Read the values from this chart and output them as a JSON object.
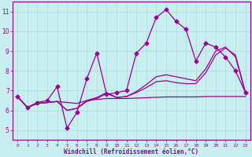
{
  "xlabel": "Windchill (Refroidissement éolien,°C)",
  "bg_color": "#c8eef0",
  "grid_color": "#b0dde0",
  "line_color": "#990099",
  "spine_color": "#880088",
  "xlim": [
    -0.5,
    23.5
  ],
  "ylim": [
    4.5,
    11.5
  ],
  "yticks": [
    5,
    6,
    7,
    8,
    9,
    10,
    11
  ],
  "xticks": [
    0,
    1,
    2,
    3,
    4,
    5,
    6,
    7,
    8,
    9,
    10,
    11,
    12,
    13,
    14,
    15,
    16,
    17,
    18,
    19,
    20,
    21,
    22,
    23
  ],
  "series": [
    {
      "x": [
        0,
        1,
        2,
        3,
        4,
        5,
        6,
        7,
        8,
        9,
        10,
        11,
        12,
        13,
        14,
        15,
        16,
        17,
        18,
        19,
        20,
        21,
        22,
        23
      ],
      "y": [
        6.7,
        6.15,
        6.4,
        6.5,
        7.2,
        5.1,
        5.9,
        7.6,
        8.9,
        6.8,
        6.9,
        7.0,
        8.9,
        9.4,
        10.7,
        11.1,
        10.5,
        10.1,
        8.5,
        9.4,
        9.2,
        8.7,
        8.0,
        6.9
      ],
      "marker": "D",
      "markersize": 2.5,
      "lw": 0.9
    },
    {
      "x": [
        0,
        1,
        2,
        3,
        4,
        5,
        6,
        7,
        8,
        9,
        10,
        11,
        12,
        13,
        14,
        15,
        16,
        17,
        18,
        19,
        20,
        21,
        22,
        23
      ],
      "y": [
        6.7,
        6.15,
        6.35,
        6.4,
        6.45,
        6.4,
        6.35,
        6.5,
        6.55,
        6.6,
        6.6,
        6.6,
        6.62,
        6.64,
        6.66,
        6.68,
        6.68,
        6.68,
        6.68,
        6.7,
        6.7,
        6.7,
        6.7,
        6.7
      ],
      "marker": null,
      "markersize": 0,
      "lw": 0.9
    },
    {
      "x": [
        0,
        1,
        2,
        3,
        4,
        5,
        6,
        7,
        8,
        9,
        10,
        11,
        12,
        13,
        14,
        15,
        16,
        17,
        18,
        19,
        20,
        21,
        22,
        23
      ],
      "y": [
        6.7,
        6.15,
        6.35,
        6.4,
        6.45,
        6.0,
        6.1,
        6.45,
        6.6,
        6.85,
        6.65,
        6.7,
        6.9,
        7.15,
        7.45,
        7.5,
        7.4,
        7.35,
        7.35,
        7.9,
        8.8,
        9.15,
        8.8,
        6.9
      ],
      "marker": null,
      "markersize": 0,
      "lw": 0.9
    },
    {
      "x": [
        0,
        1,
        2,
        3,
        4,
        5,
        6,
        7,
        8,
        9,
        10,
        11,
        12,
        13,
        14,
        15,
        16,
        17,
        18,
        19,
        20,
        21,
        22,
        23
      ],
      "y": [
        6.7,
        6.15,
        6.35,
        6.4,
        6.45,
        6.0,
        6.1,
        6.5,
        6.65,
        6.9,
        6.65,
        6.7,
        6.95,
        7.3,
        7.7,
        7.8,
        7.7,
        7.6,
        7.5,
        8.1,
        9.0,
        9.2,
        8.7,
        6.9
      ],
      "marker": null,
      "markersize": 0,
      "lw": 0.9
    }
  ]
}
